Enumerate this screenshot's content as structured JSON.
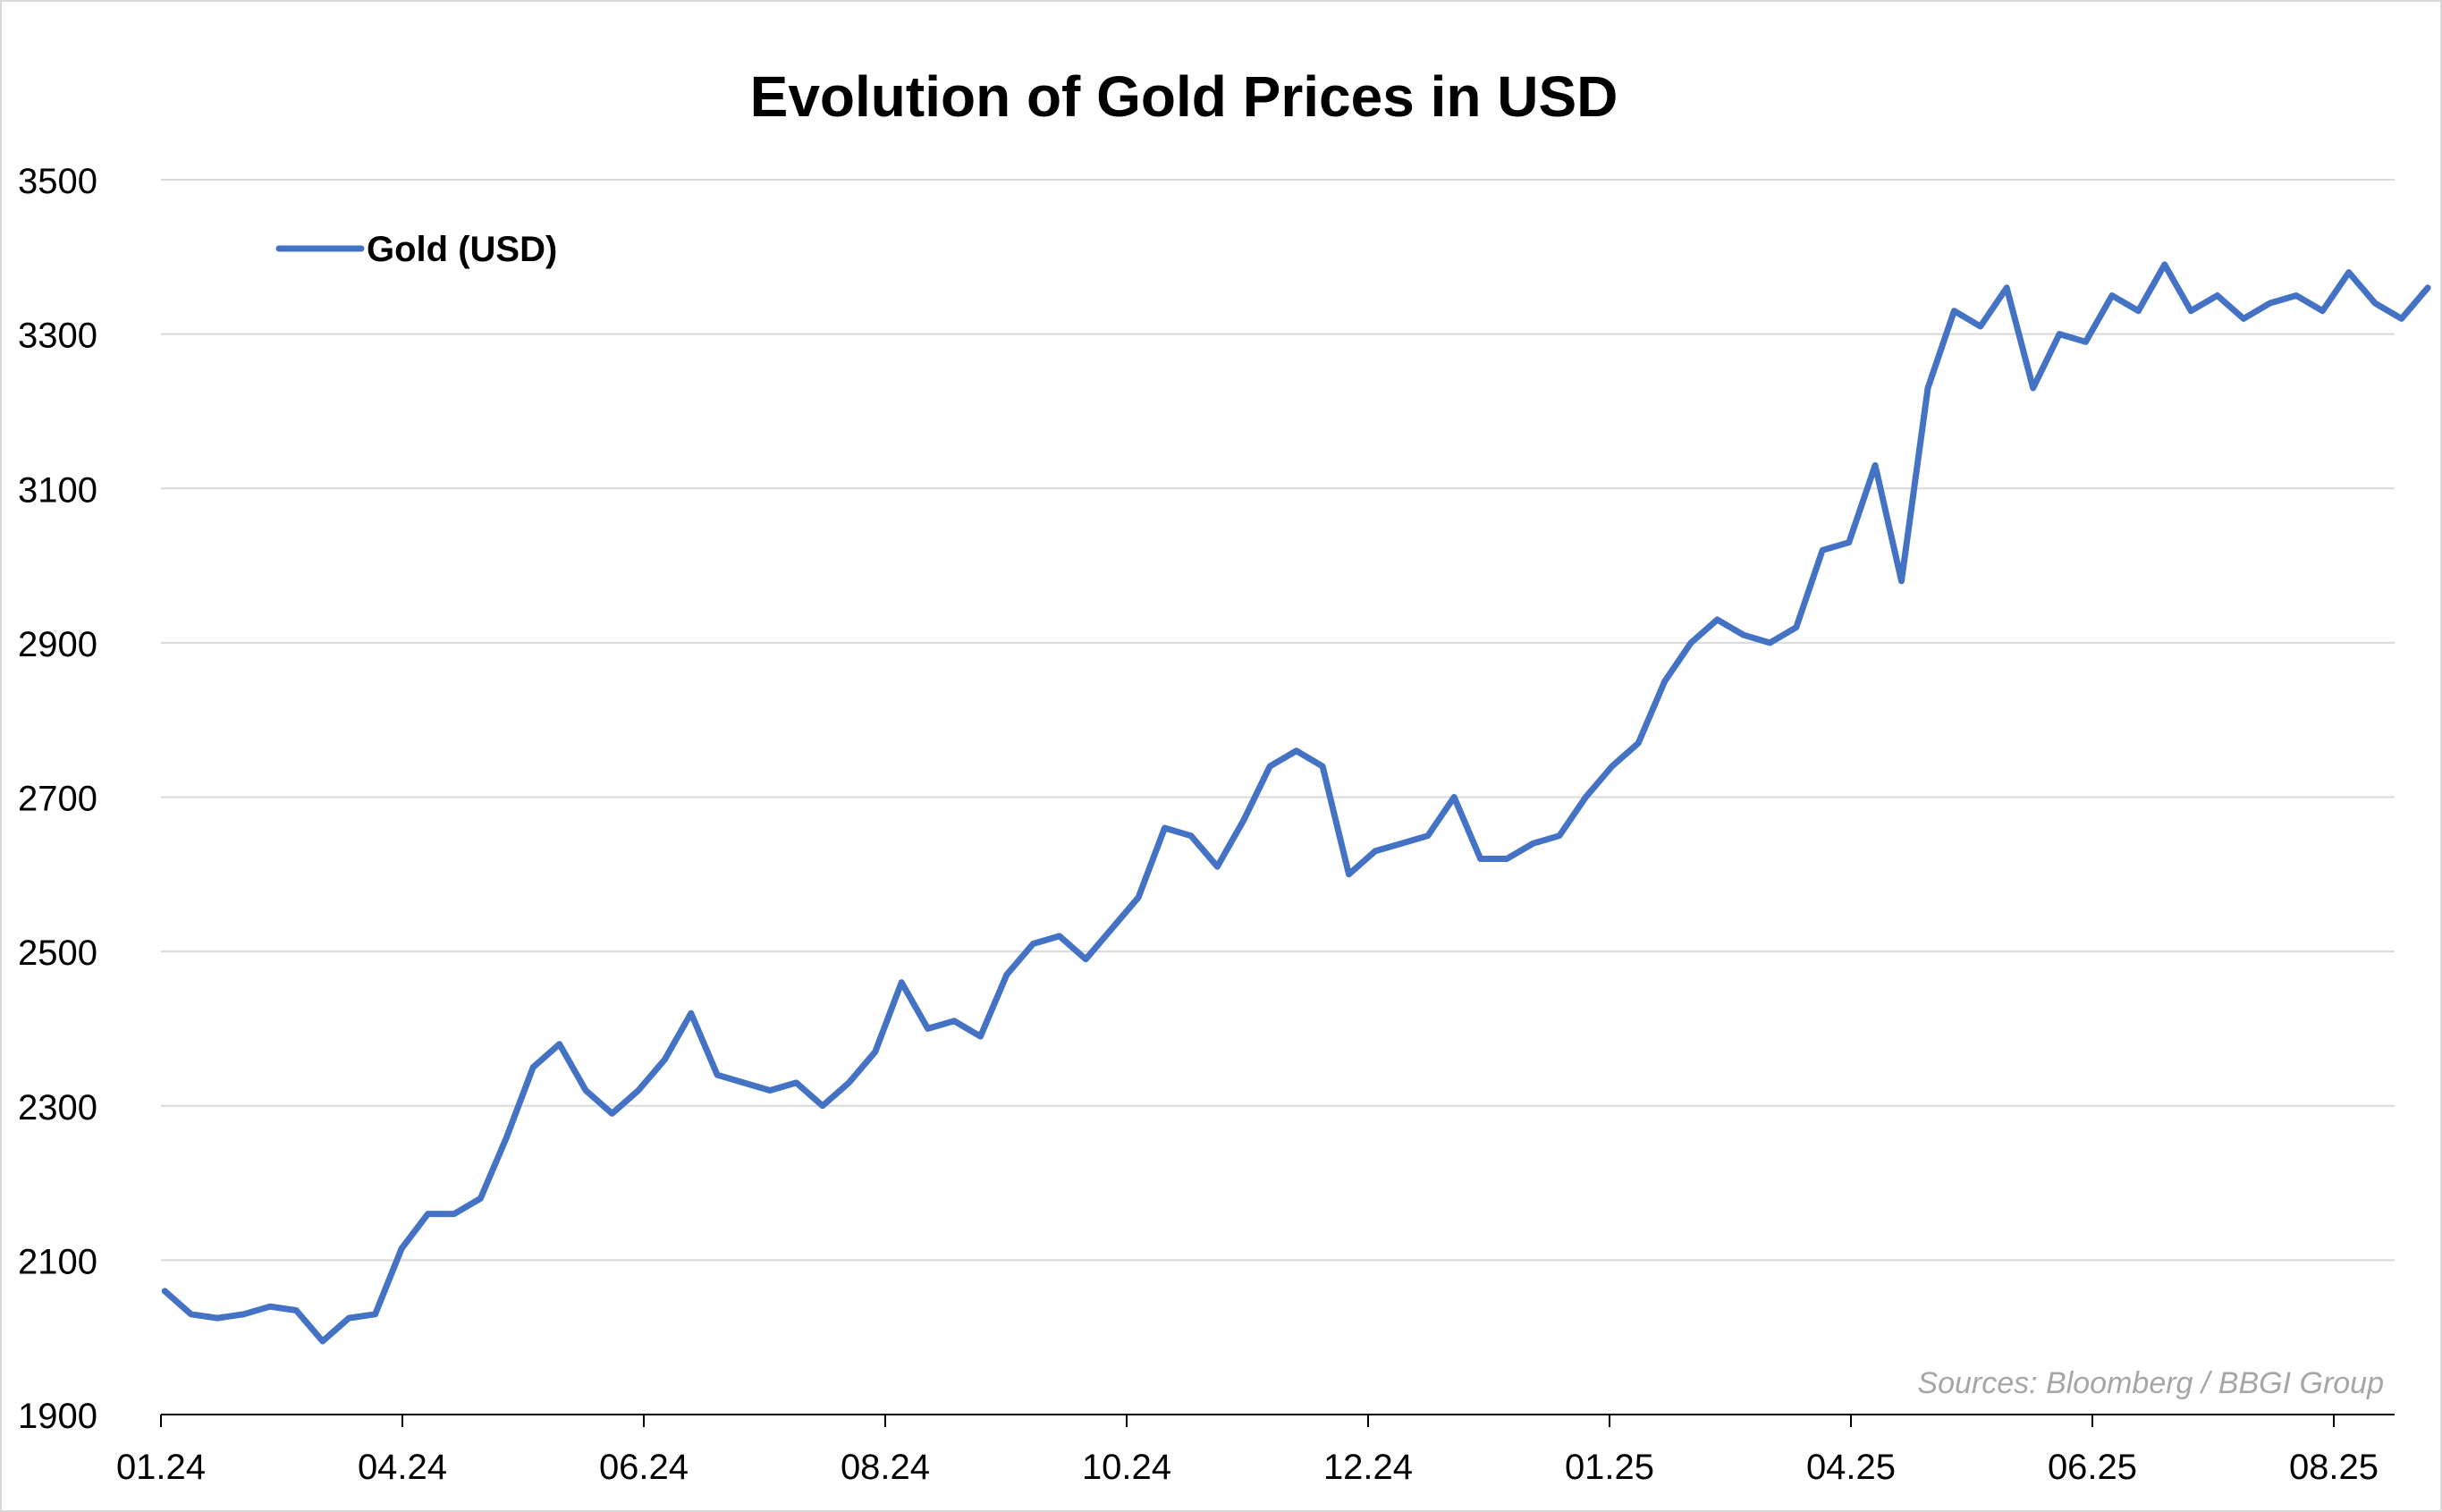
{
  "chart_data": {
    "type": "line",
    "title": "Evolution of Gold Prices in USD",
    "xlabel": "",
    "ylabel": "",
    "ylim": [
      1900,
      3500
    ],
    "y_ticks": [
      1900,
      2100,
      2300,
      2500,
      2700,
      2900,
      3100,
      3300,
      3500
    ],
    "x_tick_labels": [
      "01.24",
      "04.24",
      "06.24",
      "08.24",
      "10.24",
      "12.24",
      "01.25",
      "04.25",
      "06.25",
      "08.25"
    ],
    "x_domain": [
      "2024-01",
      "2025-08"
    ],
    "grid": "horizontal",
    "legend_position": "top-left",
    "source": "Sources: Bloomberg / BBGI Group",
    "series": [
      {
        "name": "Gold (USD)",
        "color": "#4472c4",
        "x": [
          "2024-01-02",
          "2024-01-09",
          "2024-01-16",
          "2024-01-23",
          "2024-01-30",
          "2024-02-06",
          "2024-02-13",
          "2024-02-20",
          "2024-02-27",
          "2024-03-05",
          "2024-03-12",
          "2024-03-19",
          "2024-03-26",
          "2024-04-02",
          "2024-04-09",
          "2024-04-16",
          "2024-04-23",
          "2024-04-30",
          "2024-05-07",
          "2024-05-14",
          "2024-05-21",
          "2024-05-28",
          "2024-06-04",
          "2024-06-11",
          "2024-06-18",
          "2024-06-25",
          "2024-07-02",
          "2024-07-09",
          "2024-07-16",
          "2024-07-23",
          "2024-07-30",
          "2024-08-06",
          "2024-08-13",
          "2024-08-20",
          "2024-08-27",
          "2024-09-03",
          "2024-09-10",
          "2024-09-17",
          "2024-09-24",
          "2024-10-01",
          "2024-10-08",
          "2024-10-15",
          "2024-10-22",
          "2024-10-29",
          "2024-11-05",
          "2024-11-12",
          "2024-11-19",
          "2024-11-26",
          "2024-12-03",
          "2024-12-10",
          "2024-12-17",
          "2024-12-24",
          "2024-12-31",
          "2025-01-07",
          "2025-01-14",
          "2025-01-21",
          "2025-01-28",
          "2025-02-04",
          "2025-02-11",
          "2025-02-18",
          "2025-02-25",
          "2025-03-04",
          "2025-03-11",
          "2025-03-18",
          "2025-03-25",
          "2025-04-01",
          "2025-04-08",
          "2025-04-15",
          "2025-04-22",
          "2025-04-29",
          "2025-05-06",
          "2025-05-13",
          "2025-05-20",
          "2025-05-27",
          "2025-06-03",
          "2025-06-10",
          "2025-06-17",
          "2025-06-24",
          "2025-07-01",
          "2025-07-08",
          "2025-07-15",
          "2025-07-22",
          "2025-07-29",
          "2025-08-05",
          "2025-08-12",
          "2025-08-19",
          "2025-08-26"
        ],
        "values": [
          2060,
          2030,
          2025,
          2030,
          2040,
          2035,
          1995,
          2025,
          2030,
          2115,
          2160,
          2160,
          2180,
          2260,
          2350,
          2380,
          2320,
          2290,
          2320,
          2360,
          2420,
          2340,
          2330,
          2320,
          2330,
          2300,
          2330,
          2370,
          2460,
          2400,
          2410,
          2390,
          2470,
          2510,
          2520,
          2490,
          2530,
          2570,
          2660,
          2650,
          2610,
          2670,
          2740,
          2760,
          2740,
          2600,
          2630,
          2640,
          2650,
          2700,
          2620,
          2620,
          2640,
          2650,
          2700,
          2740,
          2770,
          2850,
          2900,
          2930,
          2910,
          2900,
          2920,
          3020,
          3030,
          3130,
          2980,
          3230,
          3330,
          3310,
          3360,
          3230,
          3300,
          3290,
          3350,
          3330,
          3390,
          3330,
          3350,
          3320,
          3340,
          3350,
          3330,
          3380,
          3340,
          3320,
          3360
        ]
      }
    ]
  }
}
